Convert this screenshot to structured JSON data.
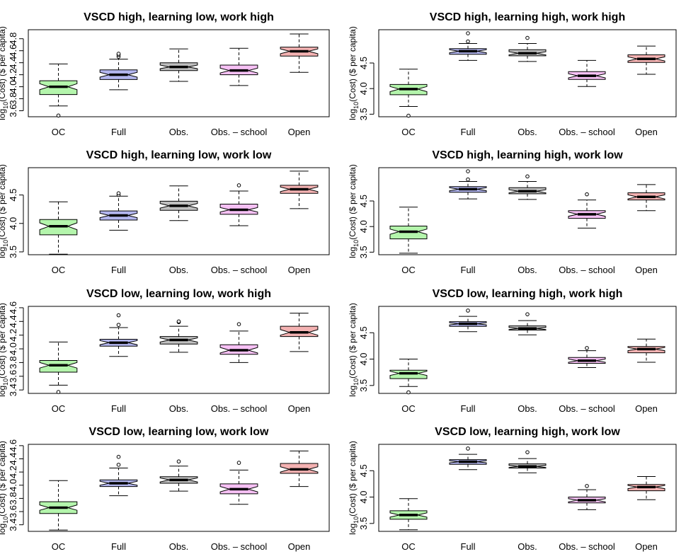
{
  "chart_data": {
    "type": "boxplot",
    "layout": "4 rows x 2 columns",
    "categories": [
      "OC",
      "Full",
      "Obs.",
      "Obs. – school",
      "Open"
    ],
    "box_colors": [
      "#b4f5ac",
      "#b3b6ef",
      "#c0c0c0",
      "#f7c1f5",
      "#f4b2b2"
    ],
    "ylabel_parts": [
      "log",
      "10",
      "(Cost) ($ per capita)"
    ],
    "panels": [
      {
        "title": "VSCD high, learning low, work high",
        "ylim": [
          3.5,
          4.95
        ],
        "yticks": [
          "3.6",
          "3.8",
          "4.0",
          "4.2",
          "4.4",
          "4.6",
          "4.8"
        ],
        "boxes": [
          {
            "min": 3.68,
            "q1": 3.87,
            "median": 4.0,
            "q3": 4.1,
            "max": 4.38,
            "notch": 0.05,
            "outliers": [
              3.52
            ]
          },
          {
            "min": 3.95,
            "q1": 4.12,
            "median": 4.2,
            "q3": 4.28,
            "max": 4.46,
            "notch": 0.04,
            "outliers": [
              4.5,
              4.53,
              4.55
            ]
          },
          {
            "min": 4.09,
            "q1": 4.27,
            "median": 4.33,
            "q3": 4.4,
            "max": 4.63,
            "notch": 0.03,
            "outliers": []
          },
          {
            "min": 4.02,
            "q1": 4.2,
            "median": 4.27,
            "q3": 4.36,
            "max": 4.64,
            "notch": 0.04,
            "outliers": []
          },
          {
            "min": 4.24,
            "q1": 4.51,
            "median": 4.59,
            "q3": 4.66,
            "max": 4.88,
            "notch": 0.04,
            "outliers": []
          }
        ]
      },
      {
        "title": "VSCD high, learning high, work high",
        "ylim": [
          3.45,
          5.15
        ],
        "yticks": [
          "3.5",
          "4.0",
          "4.5"
        ],
        "boxes": [
          {
            "min": 3.65,
            "q1": 3.88,
            "median": 3.99,
            "q3": 4.08,
            "max": 4.38,
            "notch": 0.05,
            "outliers": [
              3.47
            ]
          },
          {
            "min": 4.55,
            "q1": 4.67,
            "median": 4.73,
            "q3": 4.78,
            "max": 4.88,
            "notch": 0.03,
            "outliers": [
              4.92,
              5.08
            ]
          },
          {
            "min": 4.53,
            "q1": 4.64,
            "median": 4.69,
            "q3": 4.76,
            "max": 4.88,
            "notch": 0.03,
            "outliers": [
              4.99
            ]
          },
          {
            "min": 4.04,
            "q1": 4.18,
            "median": 4.25,
            "q3": 4.33,
            "max": 4.55,
            "notch": 0.04,
            "outliers": []
          },
          {
            "min": 4.28,
            "q1": 4.51,
            "median": 4.58,
            "q3": 4.66,
            "max": 4.83,
            "notch": 0.04,
            "outliers": []
          }
        ]
      },
      {
        "title": "VSCD high, learning low, work low",
        "ylim": [
          3.45,
          4.98
        ],
        "yticks": [
          "3.5",
          "4.0",
          "4.5"
        ],
        "boxes": [
          {
            "min": 3.46,
            "q1": 3.8,
            "median": 3.95,
            "q3": 4.07,
            "max": 4.38,
            "notch": 0.06,
            "outliers": []
          },
          {
            "min": 3.88,
            "q1": 4.06,
            "median": 4.14,
            "q3": 4.22,
            "max": 4.48,
            "notch": 0.04,
            "outliers": [
              4.5,
              4.53
            ]
          },
          {
            "min": 4.05,
            "q1": 4.23,
            "median": 4.31,
            "q3": 4.39,
            "max": 4.66,
            "notch": 0.04,
            "outliers": []
          },
          {
            "min": 3.96,
            "q1": 4.16,
            "median": 4.24,
            "q3": 4.34,
            "max": 4.57,
            "notch": 0.04,
            "outliers": [
              4.67
            ]
          },
          {
            "min": 4.26,
            "q1": 4.53,
            "median": 4.6,
            "q3": 4.67,
            "max": 4.92,
            "notch": 0.04,
            "outliers": []
          }
        ]
      },
      {
        "title": "VSCD high, learning high, work low",
        "ylim": [
          3.45,
          5.15
        ],
        "yticks": [
          "3.5",
          "4.0",
          "4.5"
        ],
        "boxes": [
          {
            "min": 3.48,
            "q1": 3.76,
            "median": 3.9,
            "q3": 4.01,
            "max": 4.38,
            "notch": 0.05,
            "outliers": []
          },
          {
            "min": 4.54,
            "q1": 4.67,
            "median": 4.73,
            "q3": 4.78,
            "max": 4.88,
            "notch": 0.03,
            "outliers": [
              4.92,
              5.08
            ]
          },
          {
            "min": 4.53,
            "q1": 4.64,
            "median": 4.69,
            "q3": 4.76,
            "max": 4.88,
            "notch": 0.03,
            "outliers": [
              4.98
            ]
          },
          {
            "min": 3.97,
            "q1": 4.16,
            "median": 4.24,
            "q3": 4.31,
            "max": 4.52,
            "notch": 0.04,
            "outliers": [
              4.63
            ]
          },
          {
            "min": 4.31,
            "q1": 4.52,
            "median": 4.58,
            "q3": 4.66,
            "max": 4.82,
            "notch": 0.04,
            "outliers": []
          }
        ]
      },
      {
        "title": "VSCD low, learning low, work high",
        "ylim": [
          3.35,
          4.62
        ],
        "yticks": [
          "3.4",
          "3.6",
          "3.8",
          "4.0",
          "4.2",
          "4.4",
          "4.6"
        ],
        "boxes": [
          {
            "min": 3.47,
            "q1": 3.66,
            "median": 3.76,
            "q3": 3.83,
            "max": 4.1,
            "notch": 0.04,
            "outliers": [
              3.37
            ]
          },
          {
            "min": 3.89,
            "q1": 4.04,
            "median": 4.09,
            "q3": 4.14,
            "max": 4.31,
            "notch": 0.03,
            "outliers": [
              4.35,
              4.49
            ]
          },
          {
            "min": 3.95,
            "q1": 4.07,
            "median": 4.13,
            "q3": 4.18,
            "max": 4.33,
            "notch": 0.03,
            "outliers": [
              4.39,
              4.4
            ]
          },
          {
            "min": 3.8,
            "q1": 3.92,
            "median": 3.98,
            "q3": 4.06,
            "max": 4.26,
            "notch": 0.04,
            "outliers": [
              4.36
            ]
          },
          {
            "min": 3.96,
            "q1": 4.18,
            "median": 4.24,
            "q3": 4.33,
            "max": 4.52,
            "notch": 0.04,
            "outliers": []
          }
        ]
      },
      {
        "title": "VSCD low, learning high, work high",
        "ylim": [
          3.35,
          5.0
        ],
        "yticks": [
          "3.5",
          "4.0",
          "4.5"
        ],
        "boxes": [
          {
            "min": 3.48,
            "q1": 3.63,
            "median": 3.73,
            "q3": 3.79,
            "max": 4.0,
            "notch": 0.04,
            "outliers": [
              3.37
            ]
          },
          {
            "min": 4.52,
            "q1": 4.62,
            "median": 4.67,
            "q3": 4.71,
            "max": 4.81,
            "notch": 0.02,
            "outliers": [
              4.92
            ]
          },
          {
            "min": 4.46,
            "q1": 4.55,
            "median": 4.58,
            "q3": 4.63,
            "max": 4.73,
            "notch": 0.02,
            "outliers": [
              4.85
            ]
          },
          {
            "min": 3.84,
            "q1": 3.92,
            "median": 3.97,
            "q3": 4.03,
            "max": 4.16,
            "notch": 0.03,
            "outliers": [
              4.21
            ]
          },
          {
            "min": 3.94,
            "q1": 4.12,
            "median": 4.19,
            "q3": 4.24,
            "max": 4.38,
            "notch": 0.03,
            "outliers": []
          }
        ]
      },
      {
        "title": "VSCD low, learning low, work low",
        "ylim": [
          3.3,
          4.62
        ],
        "yticks": [
          "3.4",
          "3.6",
          "3.8",
          "4.0",
          "4.2",
          "4.4",
          "4.6"
        ],
        "boxes": [
          {
            "min": 3.32,
            "q1": 3.57,
            "median": 3.66,
            "q3": 3.75,
            "max": 4.07,
            "notch": 0.04,
            "outliers": []
          },
          {
            "min": 3.84,
            "q1": 3.98,
            "median": 4.03,
            "q3": 4.08,
            "max": 4.26,
            "notch": 0.03,
            "outliers": [
              4.31,
              4.43
            ]
          },
          {
            "min": 3.91,
            "q1": 4.03,
            "median": 4.08,
            "q3": 4.13,
            "max": 4.29,
            "notch": 0.03,
            "outliers": [
              4.36
            ]
          },
          {
            "min": 3.71,
            "q1": 3.87,
            "median": 3.94,
            "q3": 4.02,
            "max": 4.23,
            "notch": 0.04,
            "outliers": [
              4.34
            ]
          },
          {
            "min": 3.98,
            "q1": 4.18,
            "median": 4.24,
            "q3": 4.33,
            "max": 4.52,
            "notch": 0.04,
            "outliers": []
          }
        ]
      },
      {
        "title": "VSCD low, learning high, work low",
        "ylim": [
          3.35,
          5.0
        ],
        "yticks": [
          "3.5",
          "4.0",
          "4.5"
        ],
        "boxes": [
          {
            "min": 3.38,
            "q1": 3.58,
            "median": 3.66,
            "q3": 3.74,
            "max": 3.97,
            "notch": 0.04,
            "outliers": []
          },
          {
            "min": 4.52,
            "q1": 4.62,
            "median": 4.67,
            "q3": 4.71,
            "max": 4.81,
            "notch": 0.02,
            "outliers": [
              4.92
            ]
          },
          {
            "min": 4.46,
            "q1": 4.55,
            "median": 4.58,
            "q3": 4.63,
            "max": 4.73,
            "notch": 0.02,
            "outliers": [
              4.85
            ]
          },
          {
            "min": 3.76,
            "q1": 3.89,
            "median": 3.94,
            "q3": 4.0,
            "max": 4.14,
            "notch": 0.03,
            "outliers": [
              4.21
            ]
          },
          {
            "min": 3.95,
            "q1": 4.12,
            "median": 4.19,
            "q3": 4.24,
            "max": 4.39,
            "notch": 0.03,
            "outliers": []
          }
        ]
      }
    ]
  }
}
